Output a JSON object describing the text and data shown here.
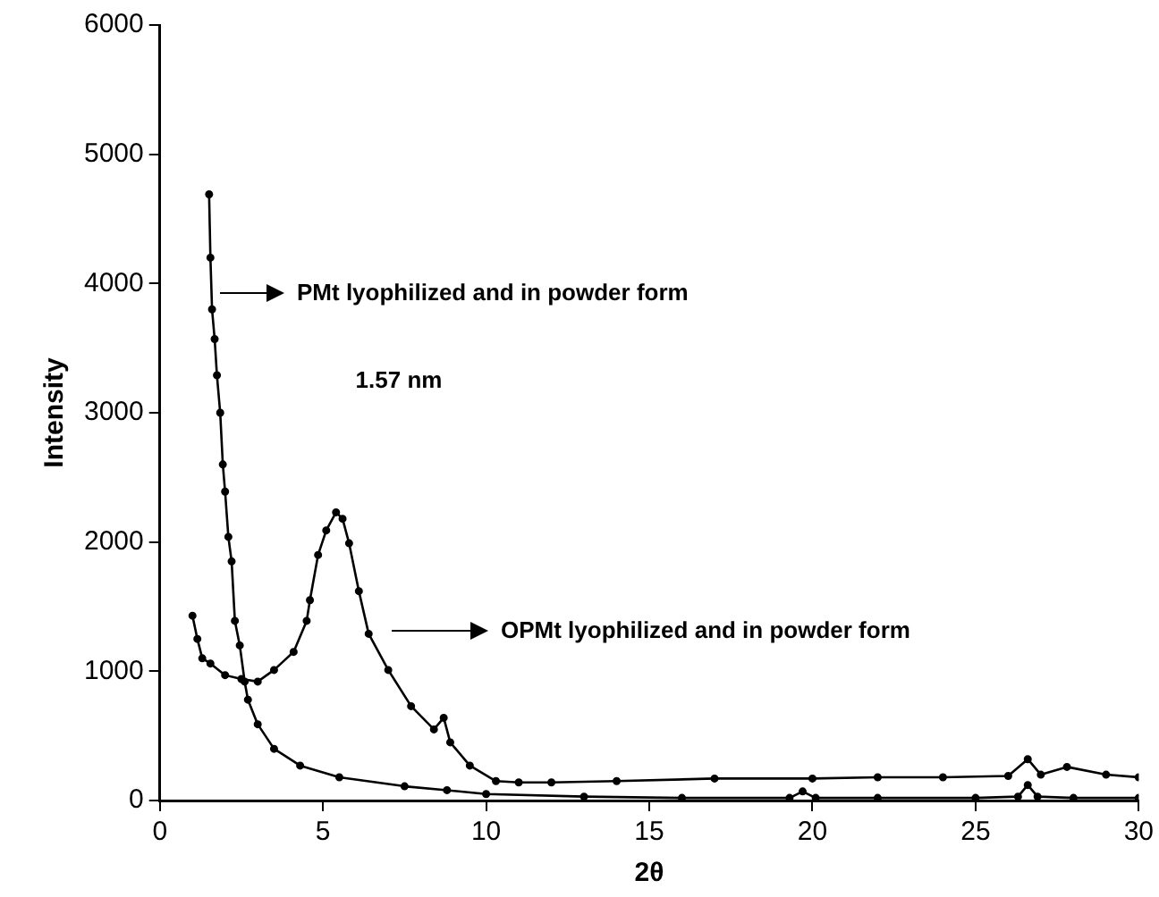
{
  "chart_data": {
    "type": "line",
    "xlabel": "2θ",
    "ylabel": "Intensity",
    "xlim": [
      0,
      30
    ],
    "ylim": [
      0,
      6000
    ],
    "xticks": [
      0,
      5,
      10,
      15,
      20,
      25,
      30
    ],
    "yticks": [
      0,
      1000,
      2000,
      3000,
      4000,
      5000,
      6000
    ],
    "grid": false,
    "legend": false,
    "marker": "circle",
    "line_style": "solid",
    "series": [
      {
        "color": "#000000",
        "x": [
          1.51,
          1.55,
          1.6,
          1.68,
          1.75,
          1.85,
          1.93,
          2.0,
          2.1,
          2.2,
          2.3,
          2.45,
          2.6,
          2.7,
          3.0,
          3.5,
          4.3,
          5.5,
          7.5,
          8.8,
          10,
          13,
          16,
          19.3,
          19.7,
          20.1,
          22,
          25,
          26.3,
          26.6,
          26.9,
          28,
          30
        ],
        "values": [
          4690,
          4200,
          3800,
          3570,
          3290,
          3000,
          2600,
          2390,
          2040,
          1850,
          1390,
          1200,
          920,
          780,
          590,
          400,
          270,
          180,
          110,
          80,
          50,
          30,
          20,
          20,
          70,
          20,
          20,
          20,
          30,
          120,
          30,
          20,
          20
        ]
      },
      {
        "color": "#000000",
        "x": [
          1.0,
          1.15,
          1.3,
          1.55,
          2.0,
          2.5,
          3.0,
          3.5,
          4.1,
          4.5,
          4.6,
          4.85,
          5.1,
          5.4,
          5.6,
          5.8,
          6.1,
          6.4,
          7.0,
          7.7,
          8.4,
          8.7,
          8.9,
          9.5,
          10.3,
          11,
          12,
          14,
          17,
          20,
          22,
          24,
          26,
          26.6,
          27,
          27.8,
          29,
          30
        ],
        "values": [
          1430,
          1250,
          1100,
          1060,
          970,
          940,
          920,
          1010,
          1150,
          1390,
          1550,
          1900,
          2090,
          2230,
          2180,
          1990,
          1620,
          1290,
          1010,
          730,
          550,
          640,
          450,
          270,
          150,
          140,
          140,
          150,
          170,
          170,
          180,
          180,
          190,
          320,
          200,
          260,
          200,
          180
        ]
      }
    ],
    "annotations": [
      "PMt lyophilized and in powder form",
      "OPMt lyophilized and in powder form",
      "1.57 nm"
    ]
  }
}
